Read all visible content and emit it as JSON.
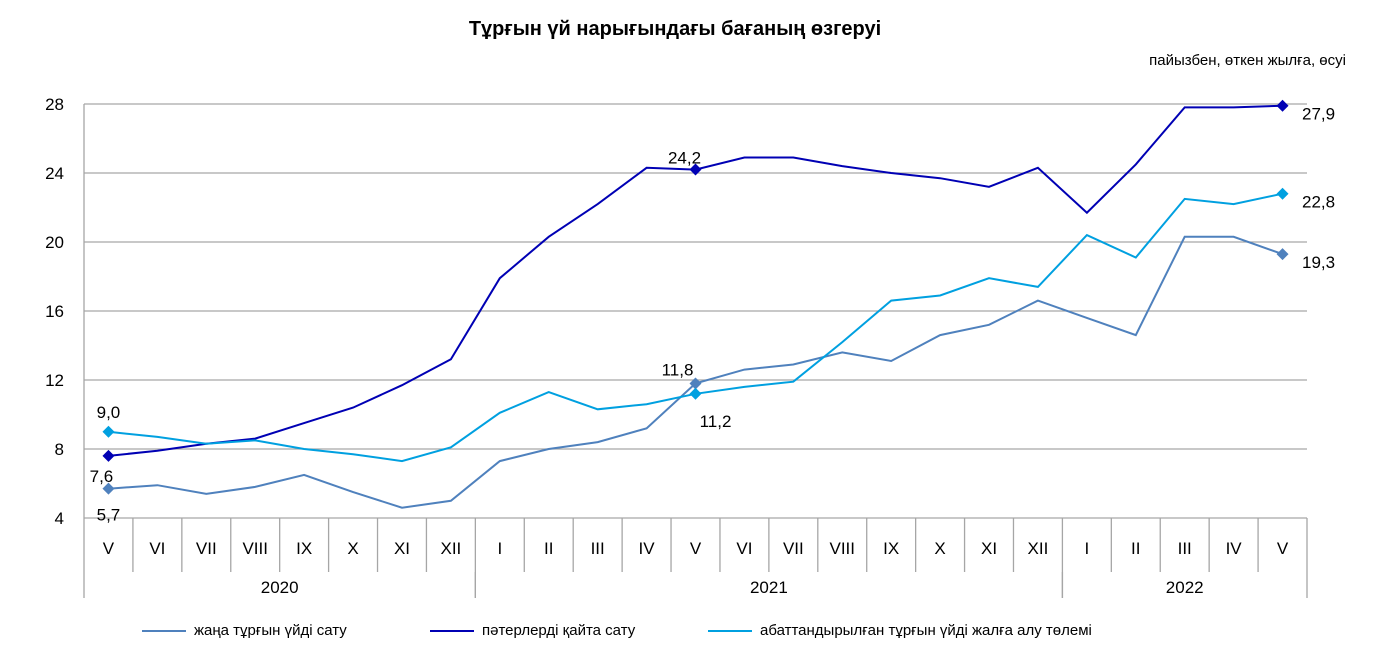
{
  "chart_data": {
    "type": "line",
    "title": "Тұрғын үй нарығындағы бағаның өзгеруі",
    "subtitle": "пайызбен, өткен жылға, өсуі",
    "categories": [
      "V",
      "VI",
      "VII",
      "VIII",
      "IX",
      "X",
      "XI",
      "XII",
      "I",
      "II",
      "III",
      "IV",
      "V",
      "VI",
      "VII",
      "VIII",
      "IX",
      "X",
      "XI",
      "XII",
      "I",
      "II",
      "III",
      "IV",
      "V"
    ],
    "years": [
      {
        "label": "2020",
        "from": 0,
        "to": 7
      },
      {
        "label": "2021",
        "from": 8,
        "to": 19
      },
      {
        "label": "2022",
        "from": 20,
        "to": 24
      }
    ],
    "ylim": [
      4,
      28
    ],
    "yticks": [
      4,
      8,
      12,
      16,
      20,
      24,
      28
    ],
    "grid": true,
    "legend_position": "bottom",
    "series": [
      {
        "name": "жаңа тұрғын  үйді сату",
        "color": "#4f81bd",
        "values": [
          5.7,
          5.9,
          5.4,
          5.8,
          6.5,
          5.5,
          4.6,
          5.0,
          7.3,
          8.0,
          8.4,
          9.2,
          11.8,
          12.6,
          12.9,
          13.6,
          13.1,
          14.6,
          15.2,
          16.6,
          15.6,
          14.6,
          20.3,
          20.3,
          19.3
        ],
        "labels": [
          {
            "index": 0,
            "text": "5,7"
          },
          {
            "index": 12,
            "text": "11,8"
          },
          {
            "index": 24,
            "text": "19,3"
          }
        ]
      },
      {
        "name": "пәтерлерді қайта сату",
        "color": "#0000b4",
        "values": [
          7.6,
          7.9,
          8.3,
          8.6,
          9.5,
          10.4,
          11.7,
          13.2,
          17.9,
          20.3,
          22.2,
          24.3,
          24.2,
          24.9,
          24.9,
          24.4,
          24.0,
          23.7,
          23.2,
          24.3,
          21.7,
          24.5,
          27.8,
          27.8,
          27.9
        ],
        "labels": [
          {
            "index": 0,
            "text": "7,6"
          },
          {
            "index": 12,
            "text": "24,2"
          },
          {
            "index": 24,
            "text": "27,9"
          }
        ]
      },
      {
        "name": "абаттандырылған тұрғын  үйді жалға  алу төлемі",
        "color": "#00a0e0",
        "values": [
          9.0,
          8.7,
          8.3,
          8.5,
          8.0,
          7.7,
          7.3,
          8.1,
          10.1,
          11.3,
          10.3,
          10.6,
          11.2,
          11.6,
          11.9,
          14.2,
          16.6,
          16.9,
          17.9,
          17.4,
          20.4,
          19.1,
          22.5,
          22.2,
          22.8
        ],
        "labels": [
          {
            "index": 0,
            "text": "9,0"
          },
          {
            "index": 12,
            "text": "11,2"
          },
          {
            "index": 24,
            "text": "22,8"
          }
        ]
      }
    ]
  }
}
